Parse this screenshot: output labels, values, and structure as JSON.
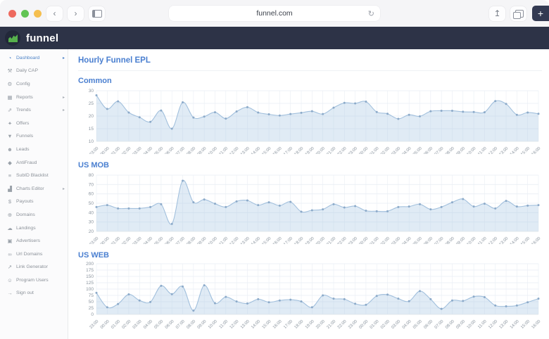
{
  "browser": {
    "url": "funnel.com",
    "traffic_lights": [
      "#ee6a5f",
      "#61c454",
      "#f5bf4f"
    ],
    "back_glyph": "‹",
    "forward_glyph": "›",
    "reload_glyph": "↻",
    "share_glyph": "↥",
    "new_tab_glyph": "+"
  },
  "header": {
    "brand": "funnel"
  },
  "colors": {
    "accent": "#4a7fd0",
    "header_bg": "#2d3347",
    "logo_green": "#56b04c",
    "chart_line": "#a2c0dd",
    "chart_marker": "#8caac9",
    "chart_fill": "rgba(166,197,226,0.35)",
    "grid": "#e9eef4",
    "tick_text": "#8b959f"
  },
  "sidebar": {
    "items": [
      {
        "label": "Dashboard",
        "icon": "dashboard-icon",
        "glyph": "◔",
        "active": true,
        "expandable": true
      },
      {
        "label": "Daily CAP",
        "icon": "wrench-icon",
        "glyph": "⚒"
      },
      {
        "label": "Config",
        "icon": "gears-icon",
        "glyph": "⚙"
      },
      {
        "label": "Reports",
        "icon": "bar-chart-icon",
        "glyph": "▦",
        "expandable": true
      },
      {
        "label": "Trends",
        "icon": "trend-line-icon",
        "glyph": "⇗",
        "expandable": true
      },
      {
        "label": "Offers",
        "icon": "tags-icon",
        "glyph": "✦"
      },
      {
        "label": "Funnels",
        "icon": "funnel-icon",
        "glyph": "▼"
      },
      {
        "label": "Leads",
        "icon": "users-icon",
        "glyph": "☻"
      },
      {
        "label": "AntiFraud",
        "icon": "shield-icon",
        "glyph": "◆"
      },
      {
        "label": "SubID Blacklist",
        "icon": "list-icon",
        "glyph": "≡"
      },
      {
        "label": "Charts Editor",
        "icon": "area-chart-icon",
        "glyph": "▟",
        "expandable": true
      },
      {
        "label": "Payouts",
        "icon": "payouts-icon",
        "glyph": "$"
      },
      {
        "label": "Domains",
        "icon": "globe-icon",
        "glyph": "⊕"
      },
      {
        "label": "Landings",
        "icon": "cloud-icon",
        "glyph": "☁"
      },
      {
        "label": "Advertisers",
        "icon": "briefcase-icon",
        "glyph": "▣"
      },
      {
        "label": "Url Domains",
        "icon": "link-icon",
        "glyph": "∞"
      },
      {
        "label": "Link Generator",
        "icon": "external-link-icon",
        "glyph": "↗"
      },
      {
        "label": "Program Users",
        "icon": "user-icon",
        "glyph": "☺"
      },
      {
        "label": "Sign out",
        "icon": "sign-out-icon",
        "glyph": "→"
      }
    ]
  },
  "main": {
    "page_title": "Hourly Funnel EPL"
  },
  "chart_data": [
    {
      "type": "area",
      "title": "Common",
      "categories": [
        "23:00",
        "00:00",
        "01:00",
        "02:00",
        "03:00",
        "04:00",
        "05:00",
        "06:00",
        "07:00",
        "08:00",
        "09:00",
        "10:00",
        "11:00",
        "12:00",
        "13:00",
        "14:00",
        "15:00",
        "16:00",
        "17:00",
        "18:00",
        "19:00",
        "20:00",
        "21:00",
        "22:00",
        "23:00",
        "00:00",
        "01:00",
        "02:00",
        "03:00",
        "04:00",
        "05:00",
        "06:00",
        "07:00",
        "08:00",
        "09:00",
        "10:00",
        "11:00",
        "12:00",
        "13:00",
        "14:00",
        "15:00",
        "16:00"
      ],
      "values": [
        28.2,
        22.8,
        25.8,
        21.4,
        19.5,
        17.7,
        22.2,
        15.0,
        25.4,
        19.4,
        19.8,
        21.5,
        19.0,
        21.8,
        23.5,
        21.4,
        20.7,
        20.2,
        20.8,
        21.3,
        21.9,
        20.8,
        23.3,
        25.2,
        25.0,
        25.7,
        21.6,
        20.9,
        18.9,
        20.5,
        19.9,
        21.9,
        22.1,
        22.1,
        21.7,
        21.6,
        21.5,
        25.9,
        24.8,
        20.5,
        21.4,
        20.9
      ],
      "y_ticks": [
        10,
        15,
        20,
        25,
        30
      ],
      "ylim": [
        10,
        30
      ],
      "xlabel": "",
      "ylabel": "",
      "grid": true,
      "legend": "none"
    },
    {
      "type": "area",
      "title": "US MOB",
      "categories": [
        "23:00",
        "00:00",
        "01:00",
        "02:00",
        "03:00",
        "04:00",
        "05:00",
        "06:00",
        "07:00",
        "08:00",
        "09:00",
        "10:00",
        "11:00",
        "12:00",
        "13:00",
        "14:00",
        "15:00",
        "16:00",
        "17:00",
        "18:00",
        "19:00",
        "20:00",
        "21:00",
        "22:00",
        "23:00",
        "00:00",
        "01:00",
        "02:00",
        "03:00",
        "04:00",
        "05:00",
        "06:00",
        "07:00",
        "08:00",
        "09:00",
        "10:00",
        "11:00",
        "12:00",
        "13:00",
        "14:00",
        "15:00",
        "16:00"
      ],
      "values": [
        46,
        48,
        44.5,
        44.5,
        44.5,
        46,
        49,
        28,
        74,
        51,
        54,
        49.5,
        46,
        52,
        53,
        48,
        51,
        47.5,
        51.5,
        41,
        42.5,
        43.5,
        49,
        45.5,
        47,
        42,
        41.5,
        41.5,
        46,
        46.5,
        49,
        43.5,
        46,
        51,
        54.5,
        46.5,
        49.5,
        44.5,
        52.5,
        46.5,
        47.5,
        48
      ],
      "y_ticks": [
        20,
        30,
        40,
        50,
        60,
        70,
        80
      ],
      "ylim": [
        20,
        80
      ],
      "xlabel": "",
      "ylabel": "",
      "grid": true,
      "legend": "none"
    },
    {
      "type": "area",
      "title": "US WEB",
      "categories": [
        "23:00",
        "00:00",
        "01:00",
        "02:00",
        "03:00",
        "04:00",
        "05:00",
        "06:00",
        "07:00",
        "08:00",
        "09:00",
        "10:00",
        "11:00",
        "12:00",
        "13:00",
        "14:00",
        "15:00",
        "16:00",
        "17:00",
        "18:00",
        "19:00",
        "20:00",
        "21:00",
        "22:00",
        "23:00",
        "00:00",
        "01:00",
        "02:00",
        "03:00",
        "04:00",
        "05:00",
        "06:00",
        "07:00",
        "08:00",
        "09:00",
        "10:00",
        "11:00",
        "12:00",
        "13:00",
        "14:00",
        "15:00",
        "16:00"
      ],
      "values": [
        85,
        28,
        41,
        79,
        55,
        49,
        113,
        80,
        110,
        15,
        115,
        44,
        69,
        51,
        43,
        60,
        48,
        55,
        58,
        51,
        28,
        75,
        62,
        60,
        42,
        38,
        73,
        78,
        62,
        52,
        92,
        60,
        22,
        55,
        53,
        70,
        68,
        35,
        32,
        35,
        48,
        62
      ],
      "y_ticks": [
        0,
        25,
        50,
        75,
        100,
        125,
        150,
        175,
        200
      ],
      "ylim": [
        0,
        200
      ],
      "xlabel": "",
      "ylabel": "",
      "grid": true,
      "legend": "none"
    }
  ]
}
